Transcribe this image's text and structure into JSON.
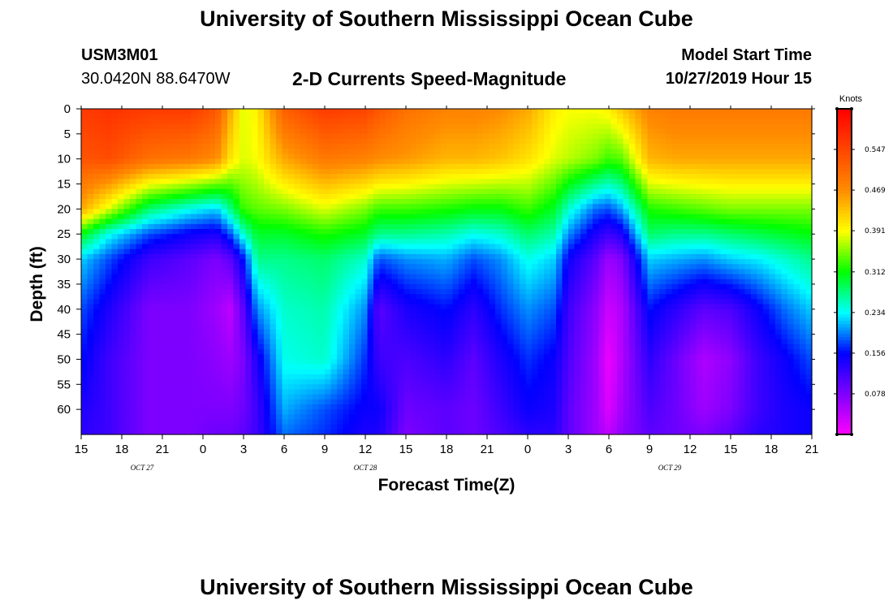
{
  "header": {
    "title": "University of Southern Mississippi Ocean Cube",
    "station_id": "USM3M01",
    "coordinates": "30.0420N 88.6470W",
    "subtitle": "2-D Currents Speed-Magnitude",
    "model_start_label": "Model Start Time",
    "model_start_time": "10/27/2019 Hour 15"
  },
  "footer": {
    "title": "University of Southern Mississippi Ocean Cube"
  },
  "chart_data": {
    "type": "heatmap",
    "title": "2-D Currents Speed-Magnitude",
    "xlabel": "Forecast Time(Z)",
    "ylabel": "Depth (ft)",
    "x_unit": "hours since 10/27/2019 15Z",
    "xlim": [
      0,
      54
    ],
    "ylim": [
      0,
      65
    ],
    "x_ticks": [
      {
        "pos": 0,
        "label": "15"
      },
      {
        "pos": 3,
        "label": "18"
      },
      {
        "pos": 6,
        "label": "21"
      },
      {
        "pos": 9,
        "label": "0"
      },
      {
        "pos": 12,
        "label": "3"
      },
      {
        "pos": 15,
        "label": "6"
      },
      {
        "pos": 18,
        "label": "9"
      },
      {
        "pos": 21,
        "label": "12"
      },
      {
        "pos": 24,
        "label": "15"
      },
      {
        "pos": 27,
        "label": "18"
      },
      {
        "pos": 30,
        "label": "21"
      },
      {
        "pos": 33,
        "label": "0"
      },
      {
        "pos": 36,
        "label": "3"
      },
      {
        "pos": 39,
        "label": "6"
      },
      {
        "pos": 42,
        "label": "9"
      },
      {
        "pos": 45,
        "label": "12"
      },
      {
        "pos": 48,
        "label": "15"
      },
      {
        "pos": 51,
        "label": "18"
      },
      {
        "pos": 54,
        "label": "21"
      }
    ],
    "date_labels": [
      {
        "pos": 4.5,
        "label": "OCT 27"
      },
      {
        "pos": 21,
        "label": "OCT 28"
      },
      {
        "pos": 43.5,
        "label": "OCT 29"
      }
    ],
    "y_ticks": [
      0,
      5,
      10,
      15,
      20,
      25,
      30,
      35,
      40,
      45,
      50,
      55,
      60
    ],
    "colorbar": {
      "title": "Knots",
      "min": 0,
      "max": 0.625,
      "tick_values": [
        0.547,
        0.469,
        0.391,
        0.312,
        0.234,
        0.156,
        0.078
      ],
      "tick_labels": [
        "0.547",
        "0.469",
        "0.391",
        "0.312",
        "0.234",
        "0.156",
        "0.078"
      ]
    },
    "depth_samples": [
      0,
      10,
      20,
      25,
      30,
      40,
      50,
      60,
      65
    ],
    "time_samples": [
      0,
      2,
      5,
      8,
      10,
      11,
      12,
      13,
      15,
      18,
      21,
      22,
      24,
      27,
      29,
      31,
      33,
      35,
      36,
      38,
      39,
      40,
      42,
      44,
      46,
      48,
      50,
      52,
      54
    ],
    "profiles": [
      [
        0.56,
        0.53,
        0.45,
        0.31,
        0.22,
        0.18,
        0.16,
        0.14,
        0.13
      ],
      [
        0.57,
        0.54,
        0.38,
        0.24,
        0.18,
        0.14,
        0.12,
        0.12,
        0.12
      ],
      [
        0.56,
        0.5,
        0.28,
        0.18,
        0.12,
        0.08,
        0.08,
        0.08,
        0.08
      ],
      [
        0.56,
        0.49,
        0.24,
        0.15,
        0.1,
        0.08,
        0.08,
        0.08,
        0.08
      ],
      [
        0.53,
        0.47,
        0.22,
        0.14,
        0.08,
        0.06,
        0.07,
        0.08,
        0.09
      ],
      [
        0.45,
        0.41,
        0.27,
        0.18,
        0.1,
        0.04,
        0.06,
        0.08,
        0.09
      ],
      [
        0.38,
        0.38,
        0.33,
        0.25,
        0.16,
        0.1,
        0.08,
        0.09,
        0.1
      ],
      [
        0.4,
        0.39,
        0.34,
        0.3,
        0.27,
        0.2,
        0.14,
        0.12,
        0.12
      ],
      [
        0.52,
        0.45,
        0.35,
        0.3,
        0.27,
        0.25,
        0.24,
        0.21,
        0.19
      ],
      [
        0.56,
        0.49,
        0.38,
        0.32,
        0.28,
        0.26,
        0.25,
        0.18,
        0.17
      ],
      [
        0.55,
        0.48,
        0.35,
        0.3,
        0.25,
        0.2,
        0.17,
        0.15,
        0.14
      ],
      [
        0.53,
        0.47,
        0.33,
        0.27,
        0.18,
        0.1,
        0.12,
        0.15,
        0.14
      ],
      [
        0.5,
        0.46,
        0.33,
        0.27,
        0.2,
        0.14,
        0.11,
        0.09,
        0.08
      ],
      [
        0.48,
        0.44,
        0.32,
        0.26,
        0.21,
        0.16,
        0.13,
        0.1,
        0.1
      ],
      [
        0.48,
        0.44,
        0.31,
        0.24,
        0.18,
        0.13,
        0.1,
        0.09,
        0.09
      ],
      [
        0.47,
        0.43,
        0.31,
        0.25,
        0.2,
        0.17,
        0.14,
        0.12,
        0.11
      ],
      [
        0.45,
        0.41,
        0.33,
        0.28,
        0.24,
        0.2,
        0.17,
        0.15,
        0.13
      ],
      [
        0.4,
        0.38,
        0.3,
        0.26,
        0.22,
        0.18,
        0.15,
        0.14,
        0.13
      ],
      [
        0.39,
        0.37,
        0.25,
        0.2,
        0.15,
        0.12,
        0.11,
        0.1,
        0.1
      ],
      [
        0.39,
        0.35,
        0.19,
        0.14,
        0.1,
        0.07,
        0.06,
        0.06,
        0.06
      ],
      [
        0.4,
        0.33,
        0.18,
        0.12,
        0.06,
        0.03,
        0.01,
        0.02,
        0.04
      ],
      [
        0.43,
        0.34,
        0.21,
        0.14,
        0.08,
        0.05,
        0.05,
        0.06,
        0.07
      ],
      [
        0.48,
        0.44,
        0.32,
        0.28,
        0.22,
        0.16,
        0.13,
        0.11,
        0.1
      ],
      [
        0.49,
        0.45,
        0.33,
        0.27,
        0.21,
        0.13,
        0.09,
        0.09,
        0.09
      ],
      [
        0.49,
        0.45,
        0.34,
        0.27,
        0.2,
        0.1,
        0.05,
        0.06,
        0.08
      ],
      [
        0.49,
        0.45,
        0.35,
        0.28,
        0.22,
        0.11,
        0.07,
        0.08,
        0.1
      ],
      [
        0.49,
        0.45,
        0.35,
        0.29,
        0.23,
        0.15,
        0.12,
        0.12,
        0.13
      ],
      [
        0.49,
        0.45,
        0.35,
        0.3,
        0.25,
        0.19,
        0.15,
        0.14,
        0.14
      ],
      [
        0.49,
        0.45,
        0.35,
        0.31,
        0.27,
        0.22,
        0.18,
        0.15,
        0.15
      ]
    ]
  }
}
